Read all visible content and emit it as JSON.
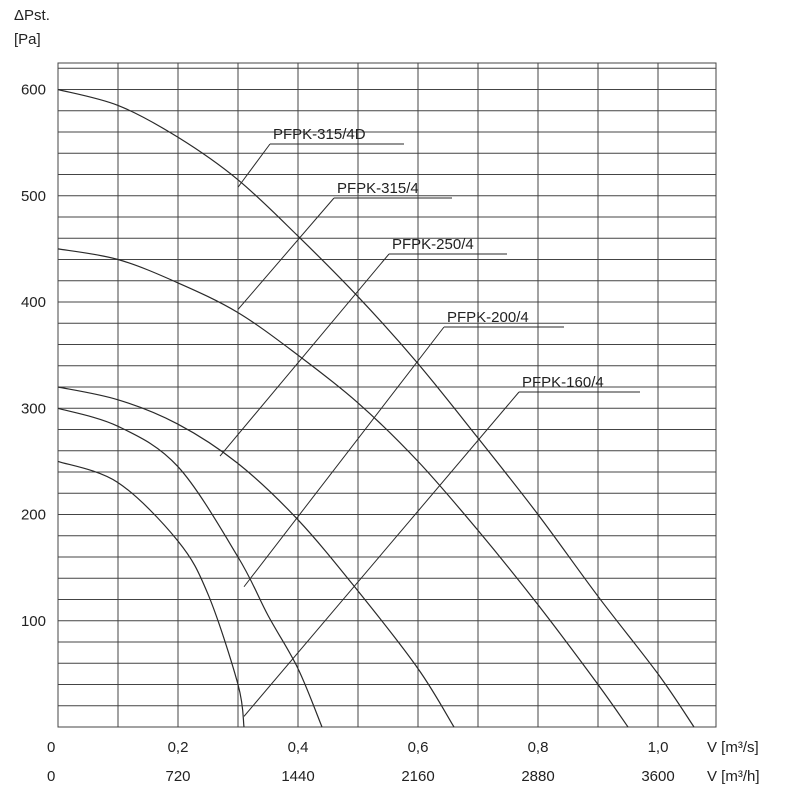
{
  "chart_data": {
    "type": "line",
    "ylabel_line1": "ΔPst.",
    "ylabel_line2": "[Pa]",
    "y_ticks": [
      "600",
      "500",
      "400",
      "300",
      "200",
      "100"
    ],
    "y_tick_values": [
      600,
      500,
      400,
      300,
      200,
      100
    ],
    "ylim": [
      0,
      630
    ],
    "xlim": [
      0,
      1.1
    ],
    "x_ticks_m3s": [
      "0",
      "0,2",
      "0,4",
      "0,6",
      "0,8",
      "1,0"
    ],
    "x_tick_values": [
      0,
      0.2,
      0.4,
      0.6,
      0.8,
      1.0
    ],
    "x_unit_m3s": "V [m³/s]",
    "x_ticks_m3h": [
      "0",
      "720",
      "1440",
      "2160",
      "2880",
      "3600"
    ],
    "x_unit_m3h": "V [m³/h]",
    "grid": true,
    "colors": {
      "highlight": "#1a1acc",
      "default": "#2a2a2a"
    },
    "series": [
      {
        "name": "PFPK-315/4D",
        "color": "#2a2a2a",
        "points": [
          [
            0,
            600
          ],
          [
            0.1,
            585
          ],
          [
            0.2,
            555
          ],
          [
            0.3,
            515
          ],
          [
            0.4,
            462
          ],
          [
            0.5,
            405
          ],
          [
            0.6,
            342
          ],
          [
            0.7,
            272
          ],
          [
            0.8,
            200
          ],
          [
            0.9,
            123
          ],
          [
            1.0,
            50
          ],
          [
            1.06,
            0
          ]
        ]
      },
      {
        "name": "PFPK-315/4",
        "color": "#2a2a2a",
        "points": [
          [
            0,
            450
          ],
          [
            0.1,
            440
          ],
          [
            0.2,
            418
          ],
          [
            0.3,
            390
          ],
          [
            0.4,
            350
          ],
          [
            0.5,
            305
          ],
          [
            0.6,
            250
          ],
          [
            0.7,
            185
          ],
          [
            0.8,
            115
          ],
          [
            0.9,
            40
          ],
          [
            0.95,
            0
          ]
        ]
      },
      {
        "name": "PFPK-250/4",
        "color": "#1a1acc",
        "points": [
          [
            0,
            320
          ],
          [
            0.1,
            308
          ],
          [
            0.2,
            285
          ],
          [
            0.3,
            248
          ],
          [
            0.4,
            195
          ],
          [
            0.5,
            128
          ],
          [
            0.6,
            55
          ],
          [
            0.66,
            0
          ]
        ]
      },
      {
        "name": "PFPK-200/4",
        "color": "#2a2a2a",
        "points": [
          [
            0,
            300
          ],
          [
            0.1,
            283
          ],
          [
            0.2,
            245
          ],
          [
            0.3,
            160
          ],
          [
            0.35,
            105
          ],
          [
            0.4,
            55
          ],
          [
            0.44,
            0
          ]
        ]
      },
      {
        "name": "PFPK-160/4",
        "color": "#2a2a2a",
        "points": [
          [
            0,
            250
          ],
          [
            0.1,
            230
          ],
          [
            0.2,
            175
          ],
          [
            0.25,
            125
          ],
          [
            0.3,
            40
          ],
          [
            0.31,
            0
          ]
        ]
      }
    ],
    "annotations": [
      {
        "text": "PFPK-315/4D",
        "series": "PFPK-315/4D",
        "at": [
          0.3,
          508
        ]
      },
      {
        "text": "PFPK-315/4",
        "series": "PFPK-315/4",
        "at": [
          0.3,
          393
        ]
      },
      {
        "text": "PFPK-250/4",
        "series": "PFPK-250/4",
        "at": [
          0.27,
          255
        ]
      },
      {
        "text": "PFPK-200/4",
        "series": "PFPK-200/4",
        "at": [
          0.31,
          132
        ]
      },
      {
        "text": "PFPK-160/4",
        "series": "PFPK-160/4",
        "at": [
          0.31,
          10
        ]
      }
    ]
  }
}
